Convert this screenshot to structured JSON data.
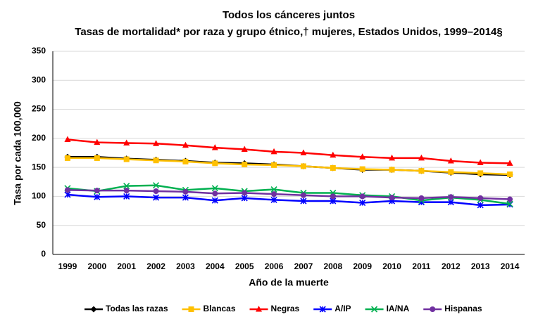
{
  "chart_data": {
    "type": "line",
    "title": "Todos los cánceres juntos",
    "subtitle": "Tasas de mortalidad* por raza y grupo étnico,†  mujeres, Estados Unidos, 1999–2014§",
    "x_label": "Año de la muerte",
    "y_label": "Tasa por cada 100,000",
    "categories": [
      "1999",
      "2000",
      "2001",
      "2002",
      "2003",
      "2004",
      "2005",
      "2006",
      "2007",
      "2008",
      "2009",
      "2010",
      "2011",
      "2012",
      "2013",
      "2014"
    ],
    "ylim": [
      0,
      350
    ],
    "yticks": [
      0,
      50,
      100,
      150,
      200,
      250,
      300,
      350
    ],
    "grid": true,
    "legend": "bottom",
    "series": [
      {
        "name": "Todas las razas",
        "color": "#000000",
        "marker": "diamond",
        "values": [
          168,
          168,
          165,
          163,
          161,
          158,
          157,
          155,
          152,
          149,
          146,
          146,
          144,
          141,
          138,
          137
        ]
      },
      {
        "name": "Blancas",
        "color": "#ffc000",
        "marker": "square",
        "values": [
          166,
          166,
          164,
          162,
          160,
          157,
          155,
          154,
          152,
          149,
          147,
          146,
          144,
          142,
          140,
          138
        ]
      },
      {
        "name": "Negras",
        "color": "#ff0000",
        "marker": "triangle",
        "values": [
          198,
          193,
          192,
          191,
          188,
          184,
          181,
          177,
          175,
          171,
          168,
          166,
          166,
          161,
          158,
          157
        ]
      },
      {
        "name": "A/IP",
        "color": "#0000ff",
        "marker": "star",
        "values": [
          103,
          99,
          100,
          98,
          98,
          93,
          97,
          94,
          92,
          92,
          89,
          92,
          90,
          90,
          85,
          86
        ]
      },
      {
        "name": "IA/NA",
        "color": "#00b050",
        "marker": "x",
        "values": [
          114,
          109,
          118,
          119,
          111,
          114,
          109,
          112,
          106,
          106,
          102,
          100,
          93,
          98,
          94,
          87
        ]
      },
      {
        "name": "Hispanas",
        "color": "#7030a0",
        "marker": "circle",
        "values": [
          111,
          110,
          110,
          109,
          108,
          105,
          106,
          104,
          102,
          100,
          100,
          98,
          97,
          99,
          97,
          95
        ]
      }
    ]
  }
}
